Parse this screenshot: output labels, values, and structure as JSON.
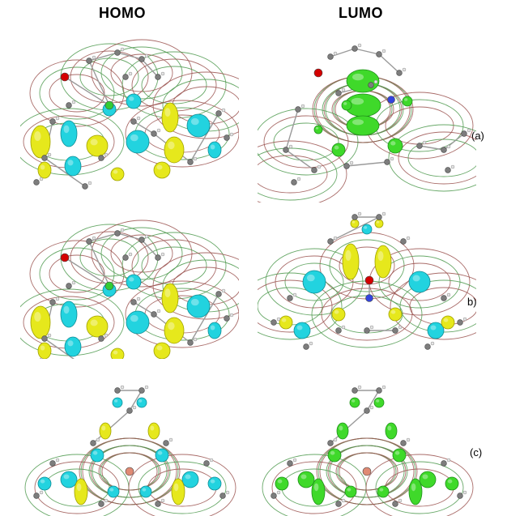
{
  "headers": {
    "homo": "HOMO",
    "lumo": "LUMO"
  },
  "row_labels": {
    "a": "(a)",
    "b": "b)",
    "c": "(c)"
  },
  "colors": {
    "lobe_yellow": "#e6e81c",
    "lobe_cyan": "#22d3df",
    "lobe_green": "#3fd92a",
    "contour_red": "#9b5450",
    "contour_green": "#4f9a4f",
    "atom_carbon": "#7d7d7d",
    "atom_hydrogen": "#e6e6e6",
    "atom_oxygen": "#d40000",
    "atom_nitrogen": "#3344dd",
    "atom_boron": "#e08a74",
    "atom_chlorine": "#33cc33"
  },
  "panels": [
    {
      "row": "a",
      "orbital": "HOMO",
      "style": "yellow-cyan"
    },
    {
      "row": "a",
      "orbital": "LUMO",
      "style": "green"
    },
    {
      "row": "b",
      "orbital": "HOMO",
      "style": "yellow-cyan"
    },
    {
      "row": "b",
      "orbital": "LUMO",
      "style": "yellow-cyan"
    },
    {
      "row": "c",
      "orbital": "HOMO",
      "style": "yellow-cyan"
    },
    {
      "row": "c",
      "orbital": "LUMO",
      "style": "green"
    }
  ]
}
